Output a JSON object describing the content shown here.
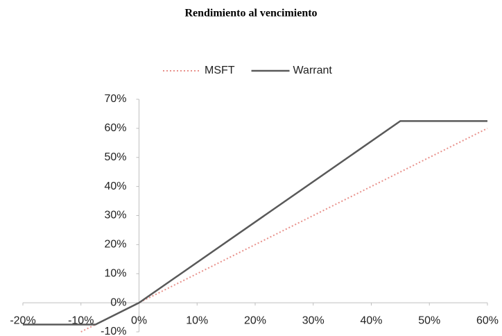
{
  "chart_data": {
    "type": "line",
    "title": "Rendimiento al vencimiento",
    "series": [
      {
        "name": "MSFT",
        "color": "#e8908a",
        "dash": "dotted",
        "x": [
          -10,
          60
        ],
        "values": [
          -10,
          60
        ]
      },
      {
        "name": "Warrant",
        "color": "#595959",
        "dash": "solid",
        "x": [
          -20,
          -7.5,
          0,
          45,
          60
        ],
        "values": [
          -7.5,
          -7.5,
          0,
          62.5,
          62.5
        ]
      }
    ],
    "xlim": [
      -20,
      60
    ],
    "xticks": [
      {
        "value": -20,
        "label": "-20%"
      },
      {
        "value": -10,
        "label": "-10%"
      },
      {
        "value": 0,
        "label": "0%"
      },
      {
        "value": 10,
        "label": "10%"
      },
      {
        "value": 20,
        "label": "20%"
      },
      {
        "value": 30,
        "label": "30%"
      },
      {
        "value": 40,
        "label": "40%"
      },
      {
        "value": 50,
        "label": "50%"
      },
      {
        "value": 60,
        "label": "60%"
      }
    ],
    "ylim": [
      -10,
      70
    ],
    "yticks": [
      {
        "value": -10,
        "label": "-10%"
      },
      {
        "value": 0,
        "label": "0%"
      },
      {
        "value": 10,
        "label": "10%"
      },
      {
        "value": 20,
        "label": "20%"
      },
      {
        "value": 30,
        "label": "30%"
      },
      {
        "value": 40,
        "label": "40%"
      },
      {
        "value": 50,
        "label": "50%"
      },
      {
        "value": 60,
        "label": "60%"
      },
      {
        "value": 70,
        "label": "70%"
      }
    ],
    "legend": "top",
    "grid": false
  }
}
